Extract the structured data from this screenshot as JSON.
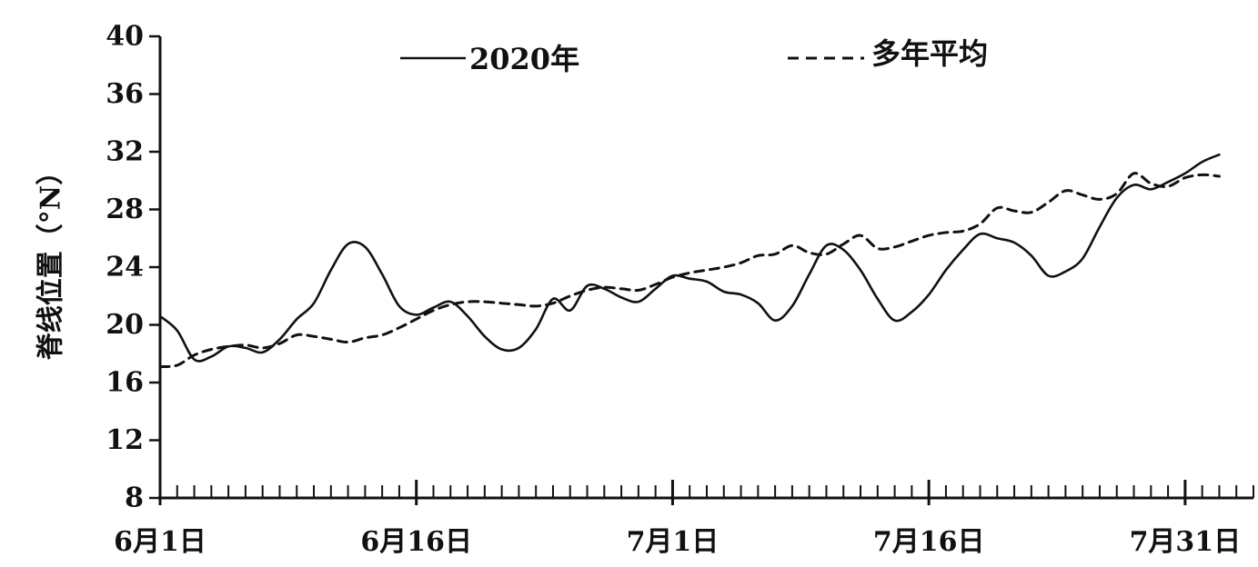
{
  "chart_data": {
    "type": "line",
    "title": "",
    "xlabel": "",
    "ylabel": "脊线位置（°N）",
    "ylim": [
      8,
      40
    ],
    "yticks": [
      8,
      12,
      16,
      20,
      24,
      28,
      32,
      36,
      40
    ],
    "xlim": [
      "2020-06-01",
      "2020-08-04"
    ],
    "xticks": [
      {
        "date": "2020-06-01",
        "label": "6月1日"
      },
      {
        "date": "2020-06-16",
        "label": "6月16日"
      },
      {
        "date": "2020-07-01",
        "label": "7月1日"
      },
      {
        "date": "2020-07-16",
        "label": "7月16日"
      },
      {
        "date": "2020-07-31",
        "label": "7月31日"
      }
    ],
    "grid": false,
    "legend_position": "top",
    "series": [
      {
        "name": "2020年",
        "style": "solid",
        "color": "#111111",
        "points": [
          [
            "2020-06-01",
            20.6
          ],
          [
            "2020-06-02",
            19.6
          ],
          [
            "2020-06-03",
            17.6
          ],
          [
            "2020-06-04",
            17.8
          ],
          [
            "2020-06-05",
            18.5
          ],
          [
            "2020-06-06",
            18.4
          ],
          [
            "2020-06-07",
            18.1
          ],
          [
            "2020-06-08",
            19.0
          ],
          [
            "2020-06-09",
            20.4
          ],
          [
            "2020-06-10",
            21.5
          ],
          [
            "2020-06-11",
            23.8
          ],
          [
            "2020-06-12",
            25.6
          ],
          [
            "2020-06-13",
            25.4
          ],
          [
            "2020-06-14",
            23.5
          ],
          [
            "2020-06-15",
            21.3
          ],
          [
            "2020-06-16",
            20.7
          ],
          [
            "2020-06-17",
            21.2
          ],
          [
            "2020-06-18",
            21.6
          ],
          [
            "2020-06-19",
            20.6
          ],
          [
            "2020-06-20",
            19.2
          ],
          [
            "2020-06-21",
            18.3
          ],
          [
            "2020-06-22",
            18.4
          ],
          [
            "2020-06-23",
            19.7
          ],
          [
            "2020-06-24",
            21.8
          ],
          [
            "2020-06-25",
            21.0
          ],
          [
            "2020-06-26",
            22.7
          ],
          [
            "2020-06-27",
            22.5
          ],
          [
            "2020-06-28",
            21.9
          ],
          [
            "2020-06-29",
            21.6
          ],
          [
            "2020-06-30",
            22.5
          ],
          [
            "2020-07-01",
            23.4
          ],
          [
            "2020-07-02",
            23.2
          ],
          [
            "2020-07-03",
            23.0
          ],
          [
            "2020-07-04",
            22.3
          ],
          [
            "2020-07-05",
            22.1
          ],
          [
            "2020-07-06",
            21.5
          ],
          [
            "2020-07-07",
            20.3
          ],
          [
            "2020-07-08",
            21.3
          ],
          [
            "2020-07-09",
            23.5
          ],
          [
            "2020-07-10",
            25.5
          ],
          [
            "2020-07-11",
            25.2
          ],
          [
            "2020-07-12",
            23.8
          ],
          [
            "2020-07-13",
            21.8
          ],
          [
            "2020-07-14",
            20.3
          ],
          [
            "2020-07-15",
            20.9
          ],
          [
            "2020-07-16",
            22.1
          ],
          [
            "2020-07-17",
            23.8
          ],
          [
            "2020-07-18",
            25.2
          ],
          [
            "2020-07-19",
            26.3
          ],
          [
            "2020-07-20",
            26.0
          ],
          [
            "2020-07-21",
            25.7
          ],
          [
            "2020-07-22",
            24.8
          ],
          [
            "2020-07-23",
            23.4
          ],
          [
            "2020-07-24",
            23.7
          ],
          [
            "2020-07-25",
            24.6
          ],
          [
            "2020-07-26",
            26.8
          ],
          [
            "2020-07-27",
            28.8
          ],
          [
            "2020-07-28",
            29.7
          ],
          [
            "2020-07-29",
            29.4
          ],
          [
            "2020-07-30",
            29.9
          ],
          [
            "2020-07-31",
            30.5
          ],
          [
            "2020-08-01",
            31.3
          ],
          [
            "2020-08-02",
            31.8
          ]
        ]
      },
      {
        "name": "多年平均",
        "style": "dashed",
        "color": "#111111",
        "points": [
          [
            "2020-06-01",
            17.1
          ],
          [
            "2020-06-02",
            17.2
          ],
          [
            "2020-06-03",
            17.9
          ],
          [
            "2020-06-04",
            18.3
          ],
          [
            "2020-06-05",
            18.5
          ],
          [
            "2020-06-06",
            18.6
          ],
          [
            "2020-06-07",
            18.4
          ],
          [
            "2020-06-08",
            18.7
          ],
          [
            "2020-06-09",
            19.3
          ],
          [
            "2020-06-10",
            19.2
          ],
          [
            "2020-06-11",
            19.0
          ],
          [
            "2020-06-12",
            18.8
          ],
          [
            "2020-06-13",
            19.1
          ],
          [
            "2020-06-14",
            19.3
          ],
          [
            "2020-06-15",
            19.8
          ],
          [
            "2020-06-16",
            20.4
          ],
          [
            "2020-06-17",
            21.0
          ],
          [
            "2020-06-18",
            21.4
          ],
          [
            "2020-06-19",
            21.6
          ],
          [
            "2020-06-20",
            21.6
          ],
          [
            "2020-06-21",
            21.5
          ],
          [
            "2020-06-22",
            21.4
          ],
          [
            "2020-06-23",
            21.3
          ],
          [
            "2020-06-24",
            21.5
          ],
          [
            "2020-06-25",
            22.0
          ],
          [
            "2020-06-26",
            22.4
          ],
          [
            "2020-06-27",
            22.6
          ],
          [
            "2020-06-28",
            22.5
          ],
          [
            "2020-06-29",
            22.4
          ],
          [
            "2020-06-30",
            22.8
          ],
          [
            "2020-07-01",
            23.3
          ],
          [
            "2020-07-02",
            23.6
          ],
          [
            "2020-07-03",
            23.8
          ],
          [
            "2020-07-04",
            24.0
          ],
          [
            "2020-07-05",
            24.3
          ],
          [
            "2020-07-06",
            24.8
          ],
          [
            "2020-07-07",
            24.9
          ],
          [
            "2020-07-08",
            25.5
          ],
          [
            "2020-07-09",
            25.0
          ],
          [
            "2020-07-10",
            24.9
          ],
          [
            "2020-07-11",
            25.6
          ],
          [
            "2020-07-12",
            26.2
          ],
          [
            "2020-07-13",
            25.3
          ],
          [
            "2020-07-14",
            25.4
          ],
          [
            "2020-07-15",
            25.8
          ],
          [
            "2020-07-16",
            26.2
          ],
          [
            "2020-07-17",
            26.4
          ],
          [
            "2020-07-18",
            26.5
          ],
          [
            "2020-07-19",
            27.0
          ],
          [
            "2020-07-20",
            28.1
          ],
          [
            "2020-07-21",
            27.9
          ],
          [
            "2020-07-22",
            27.8
          ],
          [
            "2020-07-23",
            28.5
          ],
          [
            "2020-07-24",
            29.3
          ],
          [
            "2020-07-25",
            29.0
          ],
          [
            "2020-07-26",
            28.7
          ],
          [
            "2020-07-27",
            29.1
          ],
          [
            "2020-07-28",
            30.5
          ],
          [
            "2020-07-29",
            29.8
          ],
          [
            "2020-07-30",
            29.6
          ],
          [
            "2020-07-31",
            30.2
          ],
          [
            "2020-08-01",
            30.4
          ],
          [
            "2020-08-02",
            30.3
          ]
        ]
      }
    ]
  }
}
